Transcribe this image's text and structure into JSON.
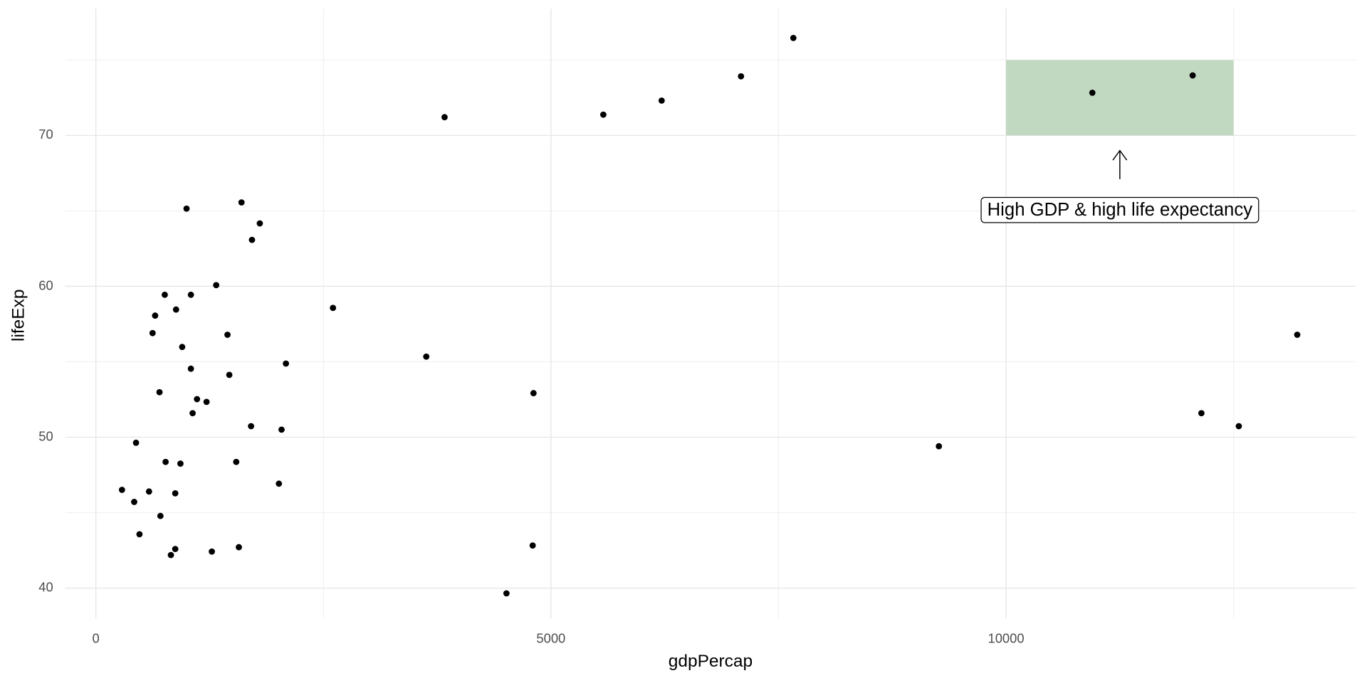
{
  "chart_data": {
    "type": "scatter",
    "x_label": "gdpPercap",
    "y_label": "lifeExp",
    "xlim": [
      -335,
      13841
    ],
    "ylim": [
      37.98,
      78.4
    ],
    "xticks": [
      0,
      5000,
      10000
    ],
    "yticks": [
      40,
      50,
      60,
      70
    ],
    "x_minor_grid": [
      2500,
      7500,
      12500
    ],
    "y_minor_grid": [
      45,
      55,
      65,
      75
    ],
    "grid": true,
    "color": "#000000",
    "x": [
      7663,
      7088,
      6216,
      5575,
      3831,
      10948,
      12050,
      996,
      1600,
      1801,
      1715,
      1322,
      757,
      1044,
      2605,
      651,
      881,
      623,
      1446,
      13199,
      948,
      3630,
      1044,
      2088,
      1466,
      699,
      4808,
      1111,
      1216,
      1063,
      12146,
      1705,
      12557,
      2040,
      441,
      9262,
      766,
      929,
      1542,
      2011,
      287,
      584,
      421,
      872,
      709,
      479,
      872,
      1571,
      4799,
      1274,
      824,
      4511
    ],
    "values": [
      76.46,
      73.92,
      72.31,
      71.38,
      71.21,
      72.83,
      73.98,
      65.15,
      65.56,
      64.17,
      63.08,
      60.08,
      59.44,
      59.44,
      58.57,
      58.06,
      58.46,
      56.9,
      56.79,
      56.79,
      55.98,
      55.34,
      54.54,
      54.88,
      54.13,
      52.98,
      52.92,
      52.52,
      52.34,
      51.59,
      51.59,
      50.73,
      50.73,
      50.5,
      49.63,
      49.4,
      48.36,
      48.25,
      48.36,
      46.92,
      46.51,
      46.4,
      45.71,
      46.28,
      44.78,
      43.57,
      42.59,
      42.71,
      42.82,
      42.42,
      42.19,
      39.65
    ],
    "highlight_region": {
      "xmin": 10000,
      "xmax": 12500,
      "ymin": 70,
      "ymax": 75,
      "color": "#c1d9c1"
    },
    "annotation": {
      "text": "High GDP & high life expectancy",
      "x": 11250,
      "y": 65,
      "arrow_from_y": 67.1,
      "arrow_to_y": 69
    }
  }
}
